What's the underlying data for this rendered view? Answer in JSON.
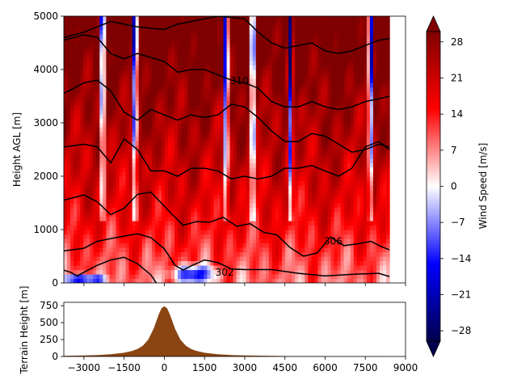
{
  "chart_data": [
    {
      "type": "heatmap",
      "title": "",
      "xlabel": "",
      "ylabel": "Height AGL [m]",
      "xlim": [
        -3750,
        9000
      ],
      "ylim": [
        0,
        5000
      ],
      "x_ticks": [
        -3000,
        -1500,
        0,
        1500,
        3000,
        4500,
        6000,
        7500,
        9000
      ],
      "x_tick_labels_visible": false,
      "y_ticks": [
        0,
        1000,
        2000,
        3000,
        4000,
        5000
      ],
      "y_tick_labels": [
        "0",
        "1000",
        "2000",
        "3000",
        "4000",
        "5000"
      ],
      "data_x_extent": [
        -3750,
        8400
      ],
      "value_range": [
        -30,
        30
      ],
      "colormap": "seismic",
      "contour_labels": [
        {
          "text": "302",
          "x": 2250,
          "y": 200
        },
        {
          "text": "306",
          "x": 6300,
          "y": 780
        },
        {
          "text": "310",
          "x": 2800,
          "y": 3790
        }
      ],
      "colorbar": {
        "label": "Wind Speed [m/s]",
        "ticks": [
          -28,
          -21,
          -14,
          -7,
          0,
          7,
          14,
          21,
          28
        ],
        "tick_labels": [
          "−28",
          "−21",
          "−14",
          "−7",
          "0",
          "7",
          "14",
          "21",
          "28"
        ],
        "extend": "both",
        "range": [
          -30,
          30
        ]
      }
    },
    {
      "type": "area",
      "title": "",
      "xlabel": "",
      "ylabel": "Terrain Height [m]",
      "xlim": [
        -3750,
        9000
      ],
      "ylim": [
        0,
        800
      ],
      "x_ticks": [
        -3000,
        -1500,
        0,
        1500,
        3000,
        4500,
        6000,
        7500,
        9000
      ],
      "x_tick_labels": [
        "−3000",
        "−1500",
        "0",
        "1500",
        "3000",
        "4500",
        "6000",
        "7500",
        "9000"
      ],
      "y_ticks": [
        0,
        250,
        500,
        750
      ],
      "y_tick_labels": [
        "0",
        "250",
        "500",
        "750"
      ],
      "fill_color": "#8b4513",
      "series": [
        {
          "x": [
            -3750,
            -3000,
            -2500,
            -2000,
            -1500,
            -1200,
            -1000,
            -800,
            -600,
            -400,
            -300,
            -200,
            -100,
            0,
            100,
            200,
            300,
            400,
            600,
            800,
            1000,
            1200,
            1500,
            2000,
            2500,
            3000,
            4000,
            5000,
            6000,
            7000,
            8400
          ],
          "values": [
            8,
            14,
            20,
            32,
            55,
            82,
            110,
            160,
            250,
            410,
            520,
            630,
            715,
            740,
            715,
            630,
            520,
            410,
            250,
            160,
            110,
            82,
            55,
            32,
            20,
            14,
            8,
            5,
            4,
            3,
            2
          ]
        }
      ]
    }
  ]
}
